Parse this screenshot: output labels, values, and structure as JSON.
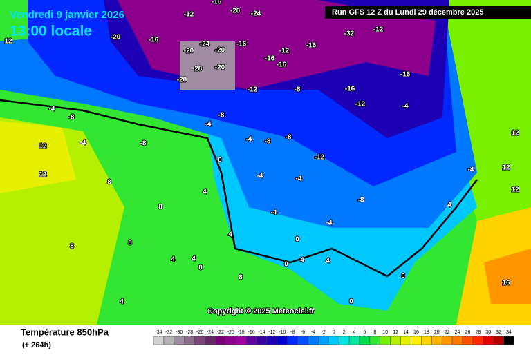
{
  "header": {
    "date": "Vendredi 9 janvier 2026",
    "time": "13:00 locale",
    "run": "Run GFS 12 Z du Lundi 29 décembre 2025"
  },
  "footer": {
    "title": "Température 850hPa",
    "lead": "(+ 264h)",
    "copyright": "Copyright © 2025 Meteociel.fr"
  },
  "legend": {
    "ticks": [
      "-34",
      "-32",
      "-30",
      "-28",
      "-26",
      "-24",
      "-22",
      "-20",
      "-18",
      "-16",
      "-14",
      "-12",
      "-10",
      "-8",
      "-6",
      "-4",
      "-2",
      "0",
      "2",
      "4",
      "6",
      "8",
      "10",
      "12",
      "14",
      "16",
      "18",
      "20",
      "22",
      "24",
      "26",
      "28",
      "30",
      "32",
      "34"
    ],
    "colors": [
      "#d2d2d2",
      "#b4b4b4",
      "#a08ca0",
      "#8c6e8c",
      "#784678",
      "#642864",
      "#780078",
      "#8c008c",
      "#a000a0",
      "#64009b",
      "#3c00a0",
      "#1e00b4",
      "#0000d2",
      "#0028ff",
      "#0050ff",
      "#0078ff",
      "#00a0ff",
      "#00c8ff",
      "#00e6e6",
      "#00e6a0",
      "#00dc50",
      "#32e632",
      "#78f000",
      "#b4f000",
      "#e6f000",
      "#fff000",
      "#ffd200",
      "#ffb400",
      "#ff9600",
      "#ff7800",
      "#ff5000",
      "#ff2800",
      "#e60000",
      "#b40000",
      "#000000"
    ]
  },
  "map_labels": [
    "-20",
    "-16",
    "-12",
    "-16",
    "-20",
    "-24",
    "-20",
    "-16",
    "-20",
    "-24",
    "-32",
    "-28",
    "-20",
    "-16",
    "-12",
    "-16",
    "-28",
    "-12",
    "-12",
    "-16",
    "-8",
    "-16",
    "-12",
    "-16",
    "-4",
    "-4",
    "-8",
    "-8",
    "-4",
    "-8",
    "-4",
    "-8",
    "-12",
    "-8",
    "-4",
    "-4",
    "-4",
    "-4",
    "0",
    "0",
    "0",
    "4",
    "4",
    "8",
    "8",
    "4",
    "8",
    "12",
    "12",
    "12",
    "8",
    "4",
    "4",
    "8",
    "12",
    "0",
    "4",
    "4",
    "16",
    "12",
    "12",
    "8",
    "0",
    "4",
    "-4",
    "-8",
    "-4"
  ]
}
